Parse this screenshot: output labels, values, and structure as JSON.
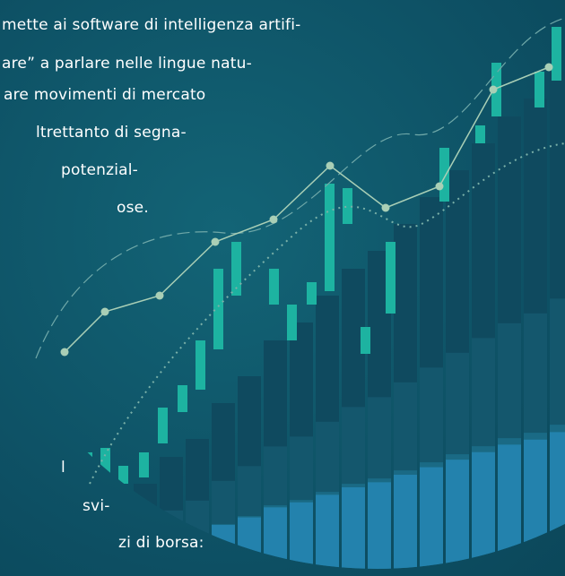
{
  "article": {
    "upper_lines": [
      "mette ai software di intelligenza artifi-",
      "are” a parlare nelle lingue natu-",
      "are movimenti di mercato",
      "ltrettanto di segna-",
      "potenzial-",
      "ose."
    ],
    "lower_lines": [
      "l",
      "svi-",
      "zi di borsa:"
    ]
  }
}
